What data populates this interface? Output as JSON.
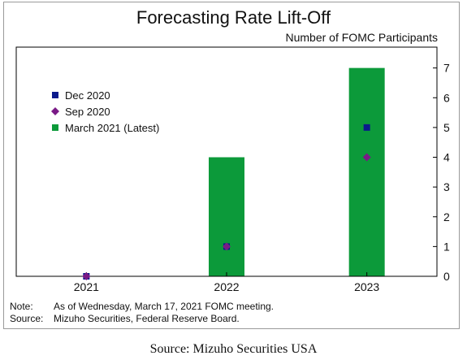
{
  "figure": {
    "title": "Forecasting Rate Lift-Off",
    "notes": [
      {
        "key": "Note:",
        "text": "As of Wednesday, March 17, 2021 FOMC meeting."
      },
      {
        "key": "Source:",
        "text": "Mizuho Securities, Federal Reserve Board."
      }
    ],
    "caption": "Source: Mizuho Securities USA"
  },
  "chart_data": {
    "type": "bar",
    "title": "Forecasting Rate Lift-Off",
    "ylabel": "Number of FOMC Participants",
    "xlabel": "",
    "categories": [
      "2021",
      "2022",
      "2023"
    ],
    "ylim": [
      0,
      7.7
    ],
    "yticks": [
      0,
      1,
      2,
      3,
      4,
      5,
      6,
      7
    ],
    "y_axis_side": "right",
    "grid": false,
    "legend_position": "upper-left",
    "series": [
      {
        "name": "Dec 2020",
        "kind": "marker",
        "marker": "square",
        "color": "#0a1a8c",
        "values": [
          0,
          1,
          5
        ]
      },
      {
        "name": "Sep 2020",
        "kind": "marker",
        "marker": "diamond",
        "color": "#7a1a86",
        "values": [
          0,
          1,
          4
        ]
      },
      {
        "name": "March 2021 (Latest)",
        "kind": "bar",
        "marker": "square",
        "color": "#0c9a3a",
        "values": [
          0,
          4,
          7
        ]
      }
    ]
  }
}
